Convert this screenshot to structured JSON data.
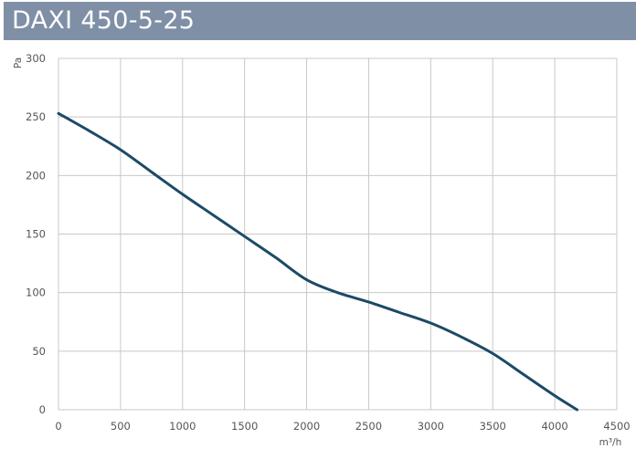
{
  "header": {
    "title": "DAXI 450-5-25"
  },
  "colors": {
    "title_bar": "#7f8fa6",
    "curve": "#1c4a66",
    "grid": "#c8c8c8",
    "text": "#555555"
  },
  "chart_data": {
    "type": "line",
    "title": "DAXI 450-5-25",
    "xlabel": "m³/h",
    "ylabel": "Pa",
    "xlim": [
      0,
      4500
    ],
    "ylim": [
      0,
      300
    ],
    "x_ticks": [
      "0",
      "500",
      "1000",
      "1500",
      "2000",
      "2500",
      "3000",
      "3500",
      "4000",
      "4500"
    ],
    "y_ticks": [
      "0",
      "50",
      "100",
      "150",
      "200",
      "250",
      "300"
    ],
    "grid": true,
    "series": [
      {
        "x": [
          0,
          250,
          500,
          750,
          1000,
          1250,
          1500,
          1750,
          2000,
          2250,
          2500,
          2750,
          3000,
          3250,
          3500,
          3750,
          4000,
          4180
        ],
        "y": [
          253,
          238,
          222,
          203,
          184,
          166,
          148,
          130,
          111,
          100,
          92,
          83,
          74,
          62,
          48,
          30,
          12,
          0
        ]
      }
    ]
  }
}
